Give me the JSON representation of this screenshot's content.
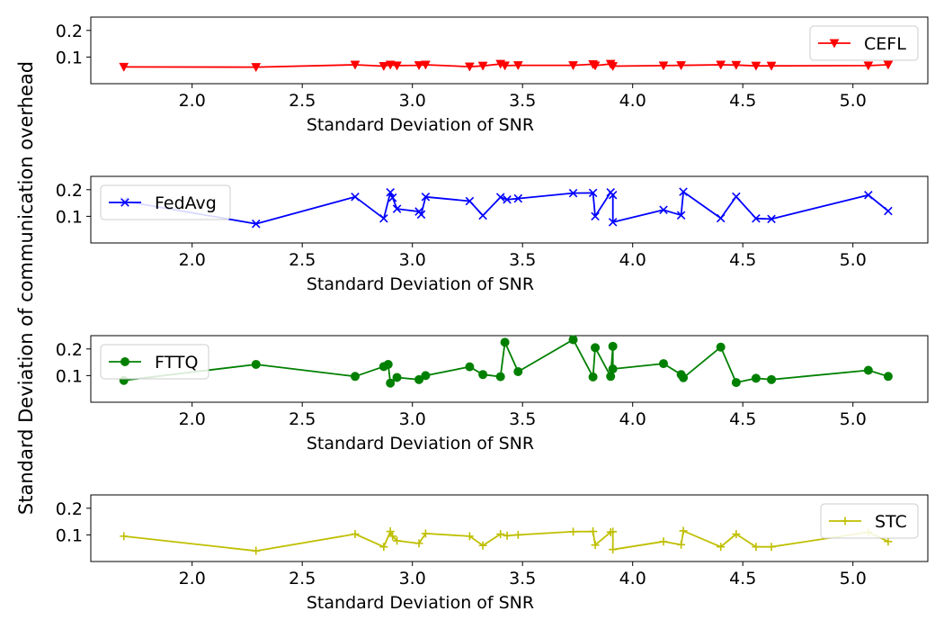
{
  "figure": {
    "ylabel": "Standard Deviation of communication overhead"
  },
  "chart_data": [
    {
      "type": "line",
      "xlabel": "Standard Deviation of SNR",
      "xlim": [
        1.54,
        5.34
      ],
      "ylim": [
        0.0,
        0.25
      ],
      "xticks": [
        "2.0",
        "2.5",
        "3.0",
        "3.5",
        "4.0",
        "4.5",
        "5.0"
      ],
      "yticks": [
        "0.1",
        "0.2"
      ],
      "legend_position": "upper right",
      "series": [
        {
          "name": "CEFL",
          "color": "#ff0000",
          "marker": "triangle-down",
          "x": [
            1.69,
            2.29,
            2.74,
            2.87,
            2.9,
            2.93,
            3.03,
            3.06,
            3.26,
            3.32,
            3.4,
            3.42,
            3.48,
            3.73,
            3.82,
            3.83,
            3.9,
            3.91,
            4.14,
            4.22,
            4.4,
            4.47,
            4.56,
            4.63,
            5.07,
            5.16
          ],
          "y": [
            0.063,
            0.062,
            0.071,
            0.066,
            0.071,
            0.068,
            0.069,
            0.071,
            0.064,
            0.067,
            0.074,
            0.068,
            0.069,
            0.069,
            0.073,
            0.068,
            0.074,
            0.066,
            0.068,
            0.069,
            0.071,
            0.07,
            0.067,
            0.067,
            0.068,
            0.071
          ]
        },
        {
          "name": "FedAvg",
          "color": "#0000ff",
          "marker": "x",
          "x": [
            1.69,
            2.29,
            2.74,
            2.87,
            2.9,
            2.91,
            2.93,
            3.03,
            3.04,
            3.06,
            3.26,
            3.32,
            3.4,
            3.43,
            3.48,
            3.73,
            3.82,
            3.83,
            3.9,
            3.91,
            3.91,
            4.14,
            4.22,
            4.23,
            4.4,
            4.47,
            4.56,
            4.63,
            5.07,
            5.16
          ],
          "y": [
            0.157,
            0.072,
            0.173,
            0.092,
            0.19,
            0.17,
            0.128,
            0.118,
            0.107,
            0.173,
            0.157,
            0.103,
            0.172,
            0.163,
            0.167,
            0.187,
            0.188,
            0.1,
            0.19,
            0.18,
            0.078,
            0.124,
            0.104,
            0.192,
            0.093,
            0.174,
            0.092,
            0.09,
            0.18,
            0.12
          ]
        },
        {
          "name": "FTTQ",
          "color": "#008000",
          "marker": "circle",
          "x": [
            1.69,
            2.29,
            2.74,
            2.87,
            2.89,
            2.9,
            2.93,
            3.03,
            3.06,
            3.26,
            3.32,
            3.4,
            3.42,
            3.48,
            3.73,
            3.82,
            3.83,
            3.9,
            3.91,
            3.91,
            4.14,
            4.22,
            4.23,
            4.4,
            4.47,
            4.56,
            4.63,
            5.07,
            5.16
          ],
          "y": [
            0.082,
            0.142,
            0.097,
            0.134,
            0.142,
            0.072,
            0.093,
            0.085,
            0.1,
            0.133,
            0.104,
            0.096,
            0.225,
            0.115,
            0.235,
            0.095,
            0.205,
            0.097,
            0.21,
            0.125,
            0.145,
            0.104,
            0.092,
            0.207,
            0.074,
            0.09,
            0.085,
            0.12,
            0.097
          ]
        },
        {
          "name": "STC",
          "color": "#bfbf00",
          "marker": "plus",
          "x": [
            1.69,
            2.29,
            2.74,
            2.87,
            2.9,
            2.91,
            2.93,
            3.03,
            3.06,
            3.26,
            3.32,
            3.4,
            3.43,
            3.48,
            3.73,
            3.82,
            3.83,
            3.9,
            3.91,
            3.91,
            4.14,
            4.22,
            4.23,
            4.4,
            4.47,
            4.56,
            4.63,
            5.07,
            5.16
          ],
          "y": [
            0.095,
            0.04,
            0.103,
            0.055,
            0.113,
            0.095,
            0.078,
            0.068,
            0.105,
            0.095,
            0.06,
            0.103,
            0.097,
            0.1,
            0.112,
            0.113,
            0.062,
            0.11,
            0.112,
            0.045,
            0.075,
            0.063,
            0.115,
            0.055,
            0.103,
            0.055,
            0.055,
            0.11,
            0.075
          ]
        }
      ]
    }
  ]
}
